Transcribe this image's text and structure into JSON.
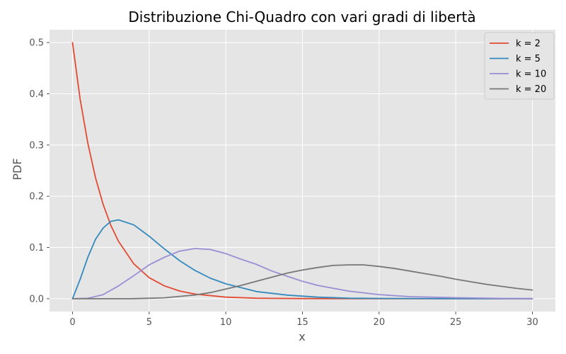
{
  "chart_data": {
    "type": "line",
    "title": "Distribuzione Chi-Quadro con vari gradi di libertà",
    "xlabel": "x",
    "ylabel": "PDF",
    "xlim": [
      -1.5,
      31.5
    ],
    "ylim": [
      -0.025,
      0.525
    ],
    "xticks": [
      0,
      5,
      10,
      15,
      20,
      25,
      30
    ],
    "yticks": [
      0.0,
      0.1,
      0.2,
      0.3,
      0.4,
      0.5
    ],
    "xtick_labels": [
      "0",
      "5",
      "10",
      "15",
      "20",
      "25",
      "30"
    ],
    "ytick_labels": [
      "0.0",
      "0.1",
      "0.2",
      "0.3",
      "0.4",
      "0.5"
    ],
    "grid": true,
    "style": "ggplot",
    "legend_position": "top-right",
    "series": [
      {
        "name": "k = 2",
        "k": 2,
        "color": "#E24A33",
        "x": [
          0,
          0.5,
          1,
          1.5,
          2,
          2.5,
          3,
          4,
          5,
          6,
          7,
          8,
          10,
          12,
          15,
          20,
          25,
          30
        ],
        "y": [
          0.5,
          0.389,
          0.303,
          0.236,
          0.184,
          0.143,
          0.112,
          0.068,
          0.041,
          0.025,
          0.015,
          0.009,
          0.003,
          0.001,
          0.0003,
          0.0,
          0.0,
          0.0
        ]
      },
      {
        "name": "k = 5",
        "k": 5,
        "color": "#348ABD",
        "x": [
          0,
          0.5,
          1,
          1.5,
          2,
          2.5,
          3,
          4,
          5,
          6,
          7,
          8,
          9,
          10,
          12,
          14,
          16,
          18,
          20,
          25,
          30
        ],
        "y": [
          0.0,
          0.038,
          0.081,
          0.116,
          0.138,
          0.151,
          0.154,
          0.144,
          0.122,
          0.097,
          0.074,
          0.055,
          0.04,
          0.029,
          0.014,
          0.007,
          0.003,
          0.001,
          0.0005,
          0.0,
          0.0
        ]
      },
      {
        "name": "k = 10",
        "k": 10,
        "color": "#988ED5",
        "x": [
          0,
          1,
          2,
          3,
          4,
          5,
          6,
          7,
          8,
          9,
          10,
          11,
          12,
          13,
          14,
          15,
          16,
          18,
          20,
          22,
          25,
          28,
          30
        ],
        "y": [
          0.0,
          0.0008,
          0.008,
          0.025,
          0.045,
          0.066,
          0.081,
          0.093,
          0.098,
          0.096,
          0.088,
          0.077,
          0.067,
          0.054,
          0.044,
          0.034,
          0.026,
          0.015,
          0.008,
          0.004,
          0.002,
          0.0006,
          0.0003
        ]
      },
      {
        "name": "k = 20",
        "k": 20,
        "color": "#777777",
        "x": [
          0,
          2,
          4,
          6,
          8,
          9,
          10,
          11,
          12,
          13,
          14,
          15,
          16,
          17,
          18,
          19,
          20,
          21,
          22,
          23,
          24,
          25,
          26,
          27,
          28,
          29,
          30
        ],
        "y": [
          0.0,
          0.0,
          0.0002,
          0.0018,
          0.0073,
          0.012,
          0.019,
          0.026,
          0.034,
          0.042,
          0.05,
          0.056,
          0.061,
          0.065,
          0.066,
          0.066,
          0.063,
          0.059,
          0.054,
          0.049,
          0.044,
          0.038,
          0.033,
          0.028,
          0.024,
          0.02,
          0.017
        ]
      }
    ]
  }
}
